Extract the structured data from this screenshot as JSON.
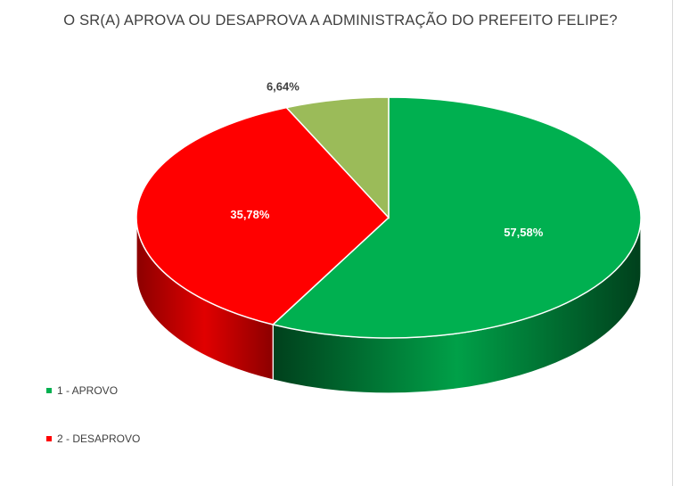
{
  "chart_data": {
    "type": "pie",
    "title": "O SR(A) APROVA OU DESAPROVA A ADMINISTRAÇÃO DO PREFEITO FELIPE?",
    "three_d": true,
    "legend_position": "bottom-left",
    "slices": [
      {
        "name": "1 - APROVO",
        "value": 57.58,
        "label": "57,58%",
        "color": "#00b050",
        "side_dark": "#00401c",
        "side_light": "#00a048"
      },
      {
        "name": "2 - DESAPROVO",
        "value": 35.78,
        "label": "35,78%",
        "color": "#ff0000",
        "side_dark": "#8c0000",
        "side_light": "#e00000"
      },
      {
        "name": "",
        "value": 6.64,
        "label": "6,64%",
        "color": "#9bbb59",
        "side_dark": "#5c7030",
        "side_light": "#8aa84e"
      }
    ]
  }
}
